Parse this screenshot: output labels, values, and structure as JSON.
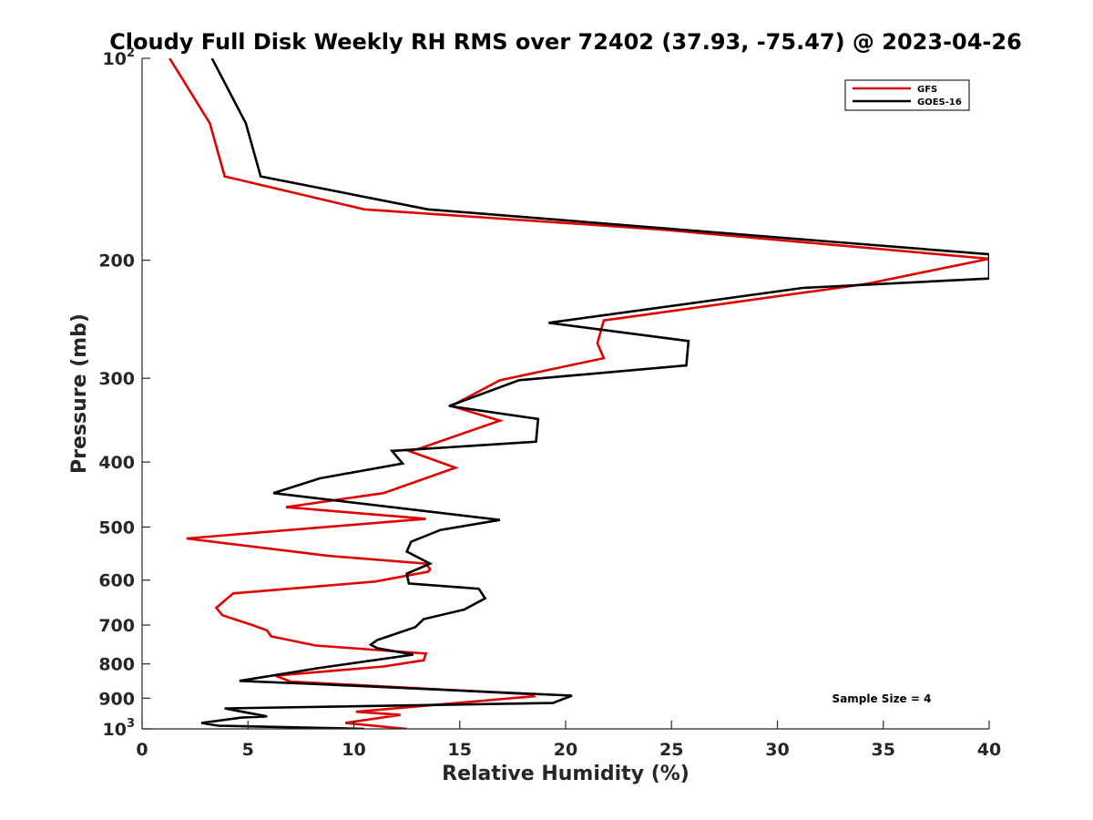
{
  "chart_data": {
    "type": "line",
    "title": "Cloudy Full Disk Weekly RH RMS over 72402 (37.93, -75.47) @ 2023-04-26",
    "xlabel": "Relative Humidity (%)",
    "ylabel": "Pressure (mb)",
    "xlim": [
      0,
      40
    ],
    "ylim": [
      100,
      1000
    ],
    "y_scale": "log",
    "y_reversed": true,
    "grid": false,
    "legend_position": "top-right",
    "x_ticks": [
      "0",
      "5",
      "10",
      "15",
      "20",
      "25",
      "30",
      "35",
      "40"
    ],
    "y_ticks": [
      {
        "value": 100,
        "base": "10",
        "exp": "2"
      },
      {
        "value": 200,
        "label": "200"
      },
      {
        "value": 300,
        "label": "300"
      },
      {
        "value": 400,
        "label": "400"
      },
      {
        "value": 500,
        "label": "500"
      },
      {
        "value": 600,
        "label": "600"
      },
      {
        "value": 700,
        "label": "700"
      },
      {
        "value": 800,
        "label": "800"
      },
      {
        "value": 900,
        "label": "900"
      },
      {
        "value": 1000,
        "base": "10",
        "exp": "3"
      }
    ],
    "series": [
      {
        "name": "GFS",
        "color": "#e00000",
        "points": [
          [
            1.3,
            100
          ],
          [
            3.2,
            125
          ],
          [
            3.9,
            150
          ],
          [
            10.5,
            168
          ],
          [
            24.5,
            180
          ],
          [
            40,
            199
          ],
          [
            34.2,
            217
          ],
          [
            21.8,
            246
          ],
          [
            21.5,
            266
          ],
          [
            21.8,
            280
          ],
          [
            16.9,
            302
          ],
          [
            14.6,
            330
          ],
          [
            16.9,
            347
          ],
          [
            15.1,
            363
          ],
          [
            13.1,
            382
          ],
          [
            12.6,
            385
          ],
          [
            14.8,
            408
          ],
          [
            11.4,
            445
          ],
          [
            6.8,
            467
          ],
          [
            13.4,
            486
          ],
          [
            2.1,
            520
          ],
          [
            8.8,
            552
          ],
          [
            13.4,
            567
          ],
          [
            13.6,
            578
          ],
          [
            13.5,
            583
          ],
          [
            11.0,
            603
          ],
          [
            4.3,
            628
          ],
          [
            3.5,
            660
          ],
          [
            3.8,
            677
          ],
          [
            5.2,
            700
          ],
          [
            5.9,
            713
          ],
          [
            6.1,
            728
          ],
          [
            8.2,
            751
          ],
          [
            13.4,
            772
          ],
          [
            13.3,
            790
          ],
          [
            11.4,
            807
          ],
          [
            6.3,
            833
          ],
          [
            7.0,
            850
          ],
          [
            18.4,
            888
          ],
          [
            18.5,
            894
          ],
          [
            10.1,
            943
          ],
          [
            12.2,
            953
          ],
          [
            9.6,
            980
          ],
          [
            12.5,
            1000
          ]
        ]
      },
      {
        "name": "GOES-16",
        "color": "#000000",
        "points": [
          [
            3.3,
            100
          ],
          [
            4.9,
            125
          ],
          [
            5.6,
            150
          ],
          [
            13.5,
            168
          ],
          [
            31.0,
            186
          ],
          [
            40,
            196
          ],
          [
            40,
            213
          ],
          [
            31.2,
            220
          ],
          [
            19.2,
            248
          ],
          [
            25.8,
            264
          ],
          [
            25.7,
            287
          ],
          [
            17.8,
            302
          ],
          [
            14.5,
            330
          ],
          [
            18.7,
            345
          ],
          [
            18.6,
            373
          ],
          [
            11.8,
            385
          ],
          [
            12.3,
            402
          ],
          [
            8.4,
            423
          ],
          [
            6.2,
            445
          ],
          [
            16.9,
            488
          ],
          [
            14.1,
            505
          ],
          [
            12.7,
            526
          ],
          [
            12.5,
            544
          ],
          [
            13.6,
            567
          ],
          [
            12.5,
            587
          ],
          [
            12.6,
            607
          ],
          [
            15.9,
            618
          ],
          [
            16.2,
            639
          ],
          [
            15.2,
            664
          ],
          [
            13.3,
            686
          ],
          [
            12.9,
            705
          ],
          [
            11.1,
            737
          ],
          [
            10.8,
            749
          ],
          [
            11.1,
            758
          ],
          [
            12.8,
            775
          ],
          [
            8.3,
            812
          ],
          [
            4.6,
            848
          ],
          [
            8.4,
            858
          ],
          [
            20.3,
            892
          ],
          [
            19.4,
            915
          ],
          [
            3.9,
            932
          ],
          [
            5.9,
            958
          ],
          [
            4.7,
            962
          ],
          [
            2.8,
            980
          ],
          [
            3.6,
            989
          ],
          [
            10.5,
            1000
          ]
        ]
      }
    ],
    "annotations": [
      "Sample Size = 4"
    ]
  }
}
